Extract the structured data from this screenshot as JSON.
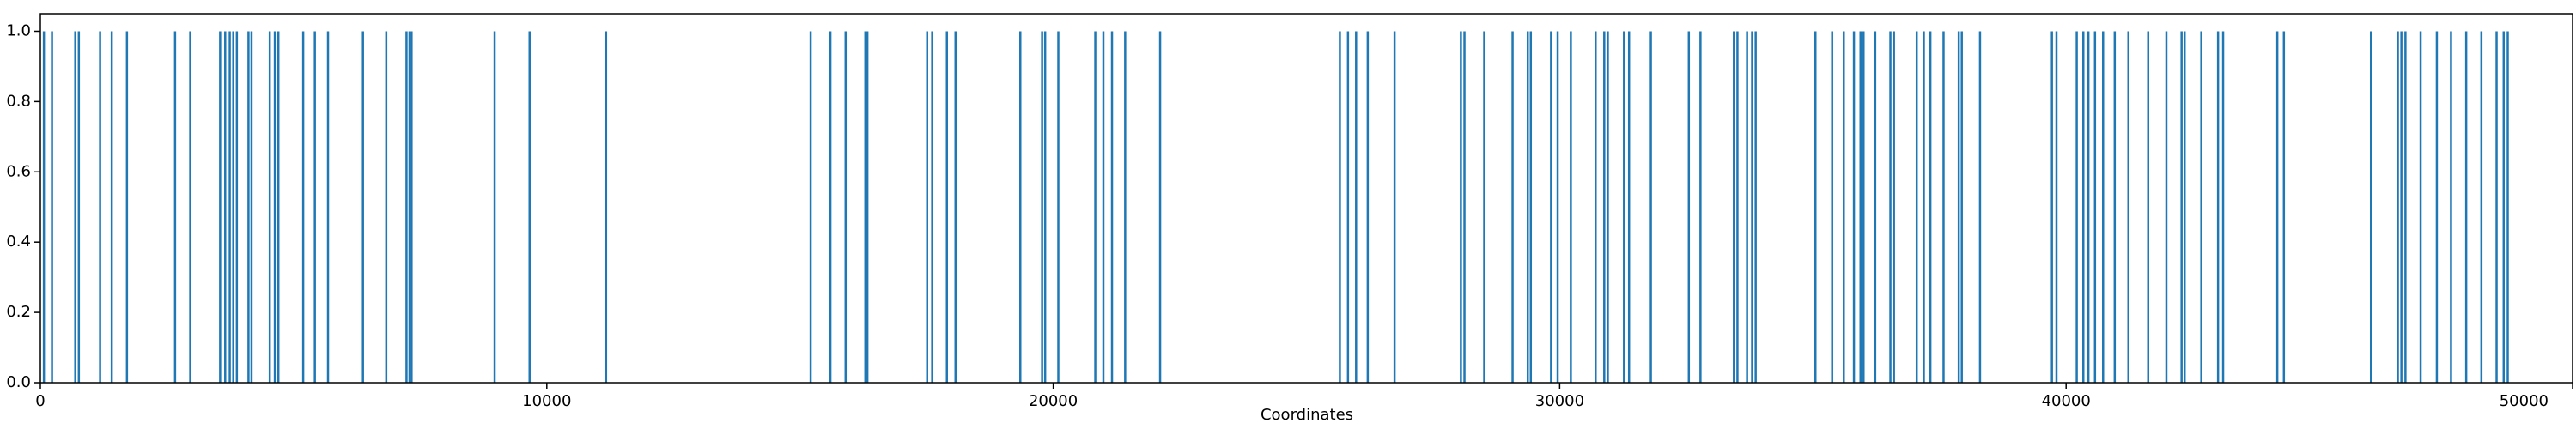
{
  "chart_data": {
    "type": "bar",
    "xlabel": "Coordinates",
    "color": "#1f77b4",
    "x": [
      70,
      230,
      690,
      760,
      1180,
      1410,
      1710,
      2660,
      2960,
      3550,
      3650,
      3740,
      3810,
      3880,
      4110,
      4170,
      4530,
      4630,
      4700,
      5190,
      5420,
      5680,
      6370,
      6830,
      7230,
      7290,
      7330,
      8970,
      9660,
      11170,
      15210,
      15600,
      15900,
      16290,
      16330,
      17510,
      17610,
      17900,
      18070,
      19350,
      19780,
      19840,
      20100,
      20830,
      20990,
      21160,
      21420,
      22110,
      25660,
      25820,
      25980,
      26210,
      26740,
      28050,
      28120,
      28510,
      29070,
      29370,
      29430,
      29830,
      29960,
      30220,
      30710,
      30880,
      30950,
      31270,
      31370,
      31800,
      32550,
      32780,
      33440,
      33510,
      33700,
      33800,
      33870,
      35050,
      35380,
      35610,
      35810,
      35940,
      36000,
      36230,
      36530,
      36600,
      37050,
      37190,
      37320,
      37580,
      37880,
      37940,
      38300,
      39720,
      39810,
      40210,
      40340,
      40440,
      40570,
      40730,
      40960,
      41230,
      41620,
      41980,
      42280,
      42340,
      42670,
      43000,
      43100,
      44170,
      44300,
      46020,
      46550,
      46620,
      46700,
      47000,
      47320,
      47600,
      47900,
      48200,
      48500,
      48640,
      48720
    ],
    "values": [
      1,
      1,
      1,
      1,
      1,
      1,
      1,
      1,
      1,
      1,
      1,
      1,
      1,
      1,
      1,
      1,
      1,
      1,
      1,
      1,
      1,
      1,
      1,
      1,
      1,
      1,
      1,
      1,
      1,
      1,
      1,
      1,
      1,
      1,
      1,
      1,
      1,
      1,
      1,
      1,
      1,
      1,
      1,
      1,
      1,
      1,
      1,
      1,
      1,
      1,
      1,
      1,
      1,
      1,
      1,
      1,
      1,
      1,
      1,
      1,
      1,
      1,
      1,
      1,
      1,
      1,
      1,
      1,
      1,
      1,
      1,
      1,
      1,
      1,
      1,
      1,
      1,
      1,
      1,
      1,
      1,
      1,
      1,
      1,
      1,
      1,
      1,
      1,
      1,
      1,
      1,
      1,
      1,
      1,
      1,
      1,
      1,
      1,
      1,
      1,
      1,
      1,
      1,
      1,
      1,
      1,
      1,
      1,
      1,
      1,
      1,
      1,
      1,
      1,
      1,
      1,
      1,
      1,
      1,
      1,
      1
    ],
    "xlim": [
      0,
      50000
    ],
    "xticks": [
      0,
      10000,
      20000,
      30000,
      40000,
      50000
    ],
    "ylim": [
      0,
      1.05
    ],
    "yticks": [
      {
        "value": 0,
        "label": "0.0"
      },
      {
        "value": 0.2,
        "label": "0.2"
      },
      {
        "value": 0.4,
        "label": "0.4"
      },
      {
        "value": 0.6,
        "label": "0.6"
      },
      {
        "value": 0.8,
        "label": "0.8"
      },
      {
        "value": 1,
        "label": "1.0"
      }
    ]
  }
}
